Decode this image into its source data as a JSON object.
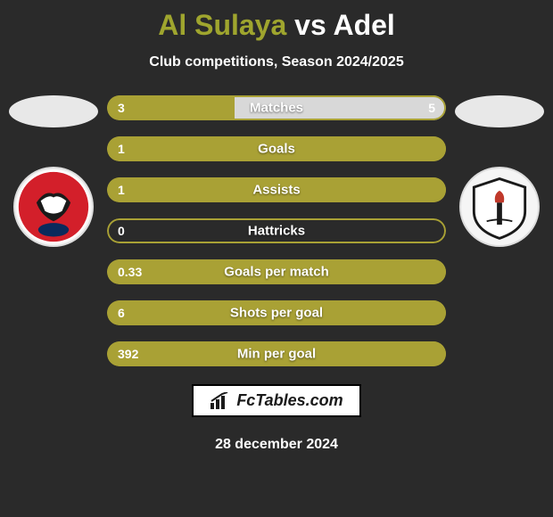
{
  "title": {
    "player1": "Al Sulaya",
    "vs": "vs",
    "player2": "Adel"
  },
  "subtitle": "Club competitions, Season 2024/2025",
  "colors": {
    "player1": "#a9a135",
    "player2": "#d8d8d8",
    "bg": "#2a2a2a",
    "title_p1": "#9fa52e",
    "title_p2": "#ffffff"
  },
  "stats": [
    {
      "label": "Matches",
      "v1": "3",
      "v2": "5",
      "w1": 37.5,
      "w2": 62.5,
      "show_v2": true
    },
    {
      "label": "Goals",
      "v1": "1",
      "v2": "",
      "w1": 100,
      "w2": 0,
      "show_v2": false
    },
    {
      "label": "Assists",
      "v1": "1",
      "v2": "",
      "w1": 100,
      "w2": 0,
      "show_v2": false
    },
    {
      "label": "Hattricks",
      "v1": "0",
      "v2": "",
      "w1": 0,
      "w2": 0,
      "show_v2": false
    },
    {
      "label": "Goals per match",
      "v1": "0.33",
      "v2": "",
      "w1": 100,
      "w2": 0,
      "show_v2": false
    },
    {
      "label": "Shots per goal",
      "v1": "6",
      "v2": "",
      "w1": 100,
      "w2": 0,
      "show_v2": false
    },
    {
      "label": "Min per goal",
      "v1": "392",
      "v2": "",
      "w1": 100,
      "w2": 0,
      "show_v2": false
    }
  ],
  "footer_logo": "FcTables.com",
  "date": "28 december 2024",
  "badges": {
    "left": {
      "bg": "#d31f2a",
      "has_bird": true
    },
    "right": {
      "bg": "#f2f2f2",
      "has_torch": true
    }
  }
}
